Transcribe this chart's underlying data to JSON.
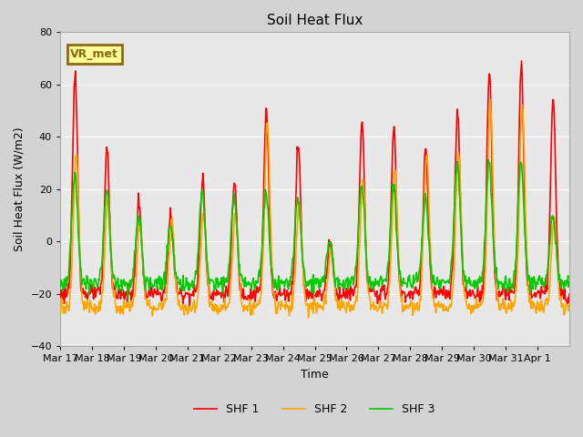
{
  "title": "Soil Heat Flux",
  "ylabel": "Soil Heat Flux (W/m2)",
  "xlabel": "Time",
  "ylim": [
    -40,
    80
  ],
  "yticks": [
    -40,
    -20,
    0,
    20,
    40,
    60,
    80
  ],
  "colors": {
    "SHF 1": "#ff0000",
    "SHF 2": "#ffa500",
    "SHF 3": "#00cc00"
  },
  "annotation_text": "VR_met",
  "annotation_bbox": {
    "facecolor": "#ffff99",
    "edgecolor": "#8b6914",
    "linewidth": 2
  },
  "background_color": "#d3d3d3",
  "plot_bg_color": "#e8e8e8",
  "line_width": 1.2,
  "peaks1": [
    68,
    40,
    20,
    15,
    28,
    27,
    54,
    42,
    5,
    50,
    47,
    40,
    54,
    70,
    72,
    59
  ],
  "peaks2": [
    38,
    22,
    12,
    13,
    16,
    15,
    50,
    20,
    3,
    28,
    32,
    38,
    40,
    58,
    57,
    14
  ],
  "peaks3": [
    29,
    22,
    12,
    10,
    23,
    20,
    22,
    20,
    3,
    25,
    25,
    20,
    33,
    35,
    34,
    12
  ],
  "x_tick_labels": [
    "Mar 17",
    "Mar 18",
    "Mar 19",
    "Mar 20",
    "Mar 21",
    "Mar 22",
    "Mar 23",
    "Mar 24",
    "Mar 25",
    "Mar 26",
    "Mar 27",
    "Mar 28",
    "Mar 29",
    "Mar 30",
    "Mar 31",
    "Apr 1"
  ],
  "n_days": 16,
  "n_per_day": 48
}
